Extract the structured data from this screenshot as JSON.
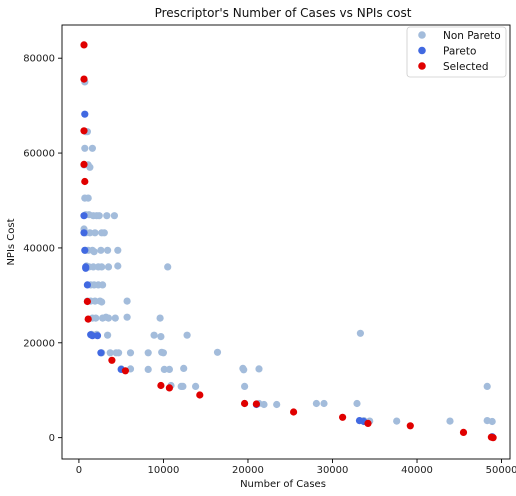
{
  "chart_data": {
    "type": "scatter",
    "title": "Prescriptor's Number of Cases vs NPIs cost",
    "xlabel": "Number of Cases",
    "ylabel": "NPIs Cost",
    "xlim": [
      -2000,
      51000
    ],
    "ylim": [
      -4500,
      87000
    ],
    "xticks": [
      0,
      10000,
      20000,
      30000,
      40000,
      50000
    ],
    "xtick_labels": [
      "0",
      "10000",
      "20000",
      "30000",
      "40000",
      "50000"
    ],
    "yticks": [
      0,
      20000,
      40000,
      60000,
      80000
    ],
    "ytick_labels": [
      "0",
      "20000",
      "40000",
      "60000",
      "80000"
    ],
    "grid": false,
    "legend_position": "top-right",
    "series": [
      {
        "name": "Non Pareto",
        "color": "#a3bcdb",
        "points": [
          [
            700,
            75000
          ],
          [
            800,
            64500
          ],
          [
            1000,
            64500
          ],
          [
            700,
            61000
          ],
          [
            1600,
            61000
          ],
          [
            600,
            57500
          ],
          [
            1100,
            57500
          ],
          [
            1300,
            57000
          ],
          [
            700,
            50500
          ],
          [
            1100,
            50500
          ],
          [
            600,
            44000
          ],
          [
            800,
            47000
          ],
          [
            1200,
            47000
          ],
          [
            1700,
            46800
          ],
          [
            2100,
            46800
          ],
          [
            2400,
            46800
          ],
          [
            3300,
            46800
          ],
          [
            4200,
            46800
          ],
          [
            800,
            43200
          ],
          [
            1300,
            43200
          ],
          [
            1900,
            43200
          ],
          [
            2700,
            43200
          ],
          [
            3000,
            43200
          ],
          [
            800,
            39500
          ],
          [
            1100,
            39500
          ],
          [
            1600,
            39500
          ],
          [
            1800,
            39200
          ],
          [
            2600,
            39500
          ],
          [
            3400,
            39500
          ],
          [
            4600,
            39500
          ],
          [
            900,
            36200
          ],
          [
            1200,
            36000
          ],
          [
            1700,
            36000
          ],
          [
            2300,
            36000
          ],
          [
            2700,
            36000
          ],
          [
            3500,
            36000
          ],
          [
            4600,
            36200
          ],
          [
            10500,
            36000
          ],
          [
            1400,
            32200
          ],
          [
            1800,
            32200
          ],
          [
            2300,
            32200
          ],
          [
            2800,
            32200
          ],
          [
            1000,
            28800
          ],
          [
            1400,
            28800
          ],
          [
            1900,
            28800
          ],
          [
            2500,
            28800
          ],
          [
            2700,
            28600
          ],
          [
            5700,
            28800
          ],
          [
            1600,
            25200
          ],
          [
            2000,
            25200
          ],
          [
            2800,
            25200
          ],
          [
            3200,
            25400
          ],
          [
            3500,
            25200
          ],
          [
            4300,
            25200
          ],
          [
            5700,
            25400
          ],
          [
            9600,
            25200
          ],
          [
            1500,
            21800
          ],
          [
            2100,
            21800
          ],
          [
            3400,
            21600
          ],
          [
            8900,
            21600
          ],
          [
            9700,
            21300
          ],
          [
            12800,
            21600
          ],
          [
            33300,
            22000
          ],
          [
            2700,
            17900
          ],
          [
            3700,
            17900
          ],
          [
            4400,
            17900
          ],
          [
            4700,
            17900
          ],
          [
            6100,
            17900
          ],
          [
            8200,
            17900
          ],
          [
            9800,
            18000
          ],
          [
            10000,
            17900
          ],
          [
            16400,
            18000
          ],
          [
            5000,
            14500
          ],
          [
            6100,
            14500
          ],
          [
            8200,
            14400
          ],
          [
            10100,
            14400
          ],
          [
            10700,
            14400
          ],
          [
            12400,
            14600
          ],
          [
            19400,
            14600
          ],
          [
            19500,
            14300
          ],
          [
            21300,
            14500
          ],
          [
            10900,
            11000
          ],
          [
            12100,
            10800
          ],
          [
            12300,
            10800
          ],
          [
            13800,
            10800
          ],
          [
            19600,
            10800
          ],
          [
            48300,
            10800
          ],
          [
            19600,
            7200
          ],
          [
            21300,
            7200
          ],
          [
            21900,
            7000
          ],
          [
            23400,
            7000
          ],
          [
            28100,
            7200
          ],
          [
            29000,
            7200
          ],
          [
            32900,
            7200
          ],
          [
            33700,
            3600
          ],
          [
            34400,
            3500
          ],
          [
            37600,
            3500
          ],
          [
            43900,
            3500
          ],
          [
            48300,
            3600
          ],
          [
            48900,
            3400
          ]
        ]
      },
      {
        "name": "Pareto",
        "color": "#4169e1",
        "points": [
          [
            700,
            68200
          ],
          [
            600,
            46800
          ],
          [
            600,
            43200
          ],
          [
            700,
            39500
          ],
          [
            800,
            36000
          ],
          [
            800,
            35700
          ],
          [
            1000,
            32200
          ],
          [
            1400,
            21700
          ],
          [
            1600,
            21500
          ],
          [
            2200,
            21500
          ],
          [
            2600,
            17900
          ],
          [
            5000,
            14400
          ],
          [
            21000,
            7000
          ],
          [
            33200,
            3600
          ],
          [
            33700,
            3400
          ],
          [
            48900,
            200
          ]
        ]
      },
      {
        "name": "Selected",
        "color": "#e00000",
        "points": [
          [
            600,
            82800
          ],
          [
            600,
            75600
          ],
          [
            600,
            64700
          ],
          [
            600,
            57600
          ],
          [
            700,
            54000
          ],
          [
            1000,
            28700
          ],
          [
            1100,
            25000
          ],
          [
            3900,
            16300
          ],
          [
            5500,
            14100
          ],
          [
            9700,
            11000
          ],
          [
            10700,
            10500
          ],
          [
            14300,
            9000
          ],
          [
            19600,
            7200
          ],
          [
            21000,
            7100
          ],
          [
            25400,
            5400
          ],
          [
            31200,
            4300
          ],
          [
            34200,
            3000
          ],
          [
            39200,
            2500
          ],
          [
            45500,
            1100
          ],
          [
            48800,
            100
          ],
          [
            49000,
            0
          ]
        ]
      }
    ]
  }
}
